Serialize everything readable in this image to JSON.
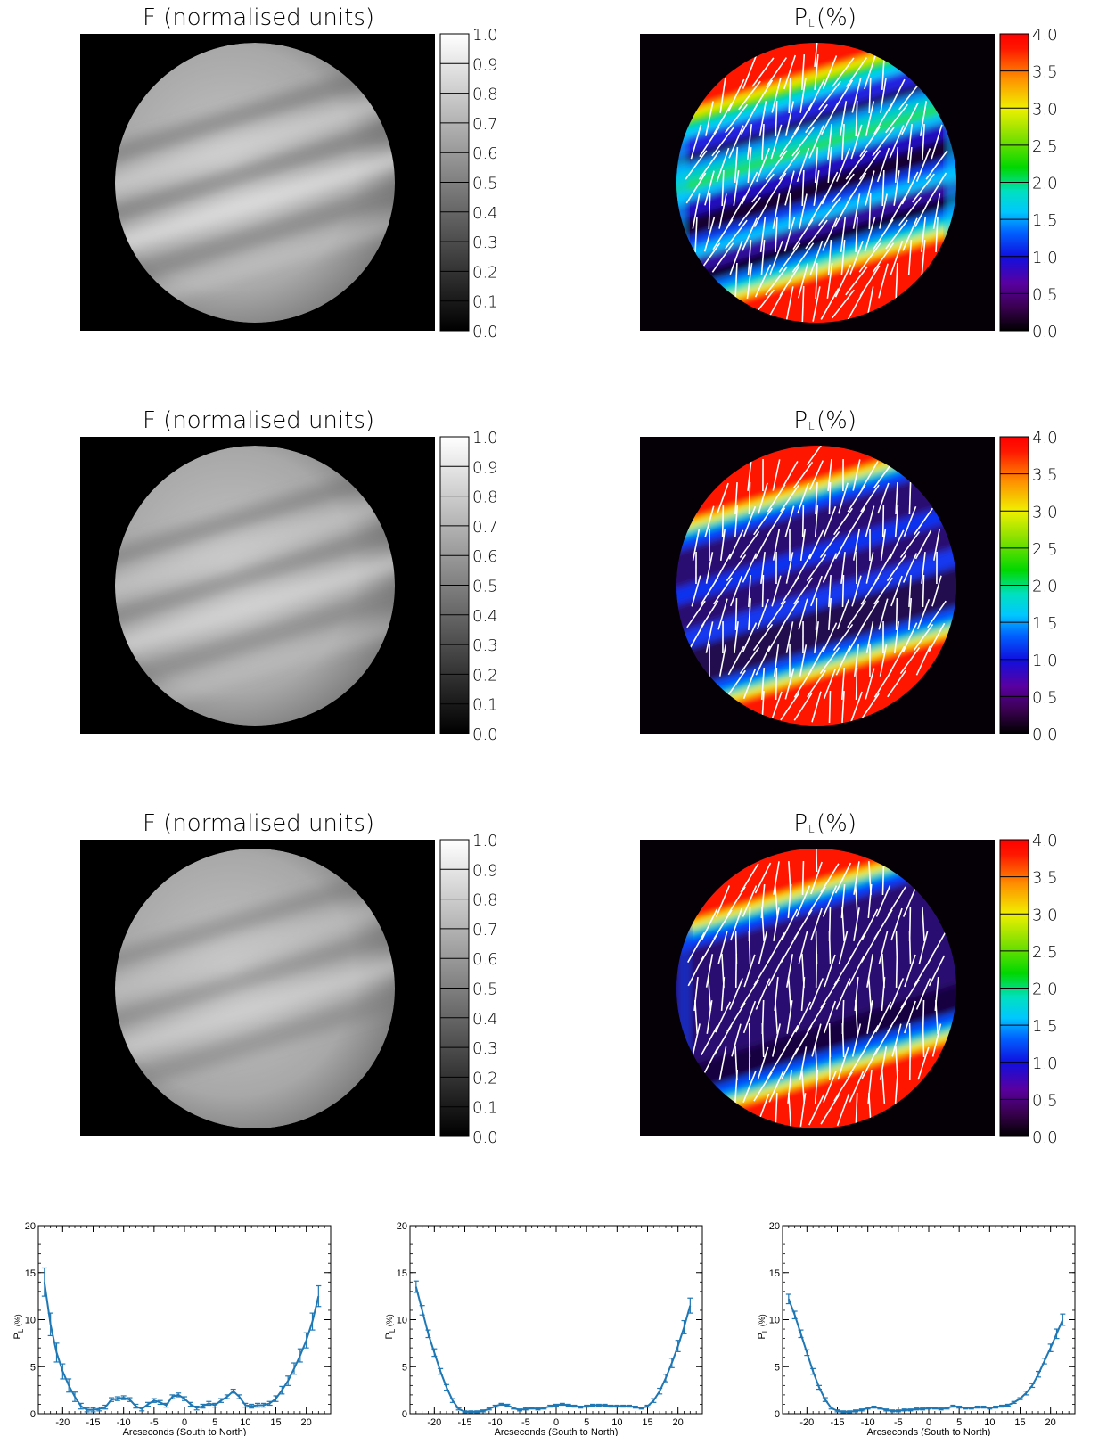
{
  "panels": [
    {
      "flux": {
        "title": "F (normalised units)",
        "colorbar_ticks": [
          "1.0",
          "0.9",
          "0.8",
          "0.7",
          "0.6",
          "0.5",
          "0.4",
          "0.3",
          "0.2",
          "0.1",
          "0.0"
        ]
      },
      "pol": {
        "title_main": "P",
        "title_sub": "L",
        "title_rest": " (%)",
        "colorbar_ticks": [
          "4.0",
          "3.5",
          "3.0",
          "2.5",
          "2.0",
          "1.5",
          "1.0",
          "0.5",
          "0.0"
        ]
      }
    },
    {
      "flux": {
        "title": "F (normalised units)",
        "colorbar_ticks": [
          "1.0",
          "0.9",
          "0.8",
          "0.7",
          "0.6",
          "0.5",
          "0.4",
          "0.3",
          "0.2",
          "0.1",
          "0.0"
        ]
      },
      "pol": {
        "title_main": "P",
        "title_sub": "L",
        "title_rest": " (%)",
        "colorbar_ticks": [
          "4.0",
          "3.5",
          "3.0",
          "2.5",
          "2.0",
          "1.5",
          "1.0",
          "0.5",
          "0.0"
        ]
      }
    },
    {
      "flux": {
        "title": "F (normalised units)",
        "colorbar_ticks": [
          "1.0",
          "0.9",
          "0.8",
          "0.7",
          "0.6",
          "0.5",
          "0.4",
          "0.3",
          "0.2",
          "0.1",
          "0.0"
        ]
      },
      "pol": {
        "title_main": "P",
        "title_sub": "L",
        "title_rest": " (%)",
        "colorbar_ticks": [
          "4.0",
          "3.5",
          "3.0",
          "2.5",
          "2.0",
          "1.5",
          "1.0",
          "0.5",
          "0.0"
        ]
      }
    }
  ],
  "colors": {
    "line": "#1f77b4",
    "background": "#000000",
    "vectors": "#ffffff"
  },
  "chart_data": [
    {
      "type": "line",
      "title": "",
      "xlabel": "Arcseconds (South to North)",
      "ylabel_main": "P",
      "ylabel_sub": "L",
      "ylabel_rest": " (%)",
      "xlim": [
        -24,
        24
      ],
      "ylim": [
        0,
        20
      ],
      "xticks": [
        -20,
        -15,
        -10,
        -5,
        0,
        5,
        10,
        15,
        20
      ],
      "yticks": [
        0,
        5,
        10,
        15,
        20
      ],
      "x": [
        -23,
        -22,
        -21,
        -20,
        -19,
        -18,
        -17,
        -16,
        -15,
        -14,
        -13,
        -12,
        -11,
        -10,
        -9,
        -8,
        -7,
        -6,
        -5,
        -4,
        -3,
        -2,
        -1,
        0,
        1,
        2,
        3,
        4,
        5,
        6,
        7,
        8,
        9,
        10,
        11,
        12,
        13,
        14,
        15,
        16,
        17,
        18,
        19,
        20,
        21,
        22
      ],
      "y": [
        14,
        9.5,
        6.5,
        4.5,
        3,
        1.8,
        0.8,
        0.4,
        0.4,
        0.5,
        0.7,
        1.5,
        1.6,
        1.7,
        1.5,
        0.8,
        0.5,
        1.0,
        1.4,
        1.2,
        0.9,
        1.8,
        2.0,
        1.6,
        1.0,
        0.6,
        0.8,
        1.1,
        0.9,
        1.4,
        1.8,
        2.4,
        1.8,
        0.9,
        0.8,
        0.9,
        0.9,
        1.1,
        1.6,
        2.5,
        3.5,
        4.8,
        6.2,
        7.8,
        9.8,
        12.5
      ],
      "err": [
        1.5,
        1.2,
        1.0,
        0.8,
        0.7,
        0.5,
        0.3,
        0.2,
        0.2,
        0.2,
        0.2,
        0.2,
        0.2,
        0.2,
        0.2,
        0.2,
        0.2,
        0.2,
        0.2,
        0.2,
        0.2,
        0.2,
        0.2,
        0.2,
        0.2,
        0.2,
        0.2,
        0.2,
        0.2,
        0.2,
        0.2,
        0.2,
        0.2,
        0.2,
        0.2,
        0.2,
        0.2,
        0.2,
        0.3,
        0.4,
        0.5,
        0.6,
        0.7,
        0.8,
        0.9,
        1.1
      ]
    },
    {
      "type": "line",
      "title": "",
      "xlabel": "Arcseconds (South to North)",
      "ylabel_main": "P",
      "ylabel_sub": "L",
      "ylabel_rest": " (%)",
      "xlim": [
        -24,
        24
      ],
      "ylim": [
        0,
        20
      ],
      "xticks": [
        -20,
        -15,
        -10,
        -5,
        0,
        5,
        10,
        15,
        20
      ],
      "yticks": [
        0,
        5,
        10,
        15,
        20
      ],
      "x": [
        -23,
        -22,
        -21,
        -20,
        -19,
        -18,
        -17,
        -16,
        -15,
        -14,
        -13,
        -12,
        -11,
        -10,
        -9,
        -8,
        -7,
        -6,
        -5,
        -4,
        -3,
        -2,
        -1,
        0,
        1,
        2,
        3,
        4,
        5,
        6,
        7,
        8,
        9,
        10,
        11,
        12,
        13,
        14,
        15,
        16,
        17,
        18,
        19,
        20,
        21,
        22
      ],
      "y": [
        13.5,
        11,
        8.5,
        6.5,
        4.5,
        2.8,
        1.4,
        0.5,
        0.2,
        0.2,
        0.2,
        0.3,
        0.5,
        0.8,
        1.0,
        0.9,
        0.6,
        0.4,
        0.5,
        0.6,
        0.5,
        0.6,
        0.8,
        0.9,
        1.0,
        0.9,
        0.8,
        0.7,
        0.8,
        0.9,
        0.9,
        0.9,
        0.8,
        0.8,
        0.8,
        0.8,
        0.7,
        0.6,
        0.8,
        1.4,
        2.4,
        3.8,
        5.4,
        7.2,
        9.2,
        11.5
      ],
      "err": [
        0.6,
        0.5,
        0.4,
        0.4,
        0.3,
        0.3,
        0.2,
        0.1,
        0.1,
        0.1,
        0.1,
        0.1,
        0.1,
        0.1,
        0.1,
        0.1,
        0.1,
        0.1,
        0.1,
        0.1,
        0.1,
        0.1,
        0.1,
        0.1,
        0.1,
        0.1,
        0.1,
        0.1,
        0.1,
        0.1,
        0.1,
        0.1,
        0.1,
        0.1,
        0.1,
        0.1,
        0.1,
        0.1,
        0.1,
        0.2,
        0.3,
        0.4,
        0.5,
        0.6,
        0.7,
        0.8
      ]
    },
    {
      "type": "line",
      "title": "",
      "xlabel": "Arcseconds (South to North)",
      "ylabel_main": "P",
      "ylabel_sub": "L",
      "ylabel_rest": " (%)",
      "xlim": [
        -24,
        24
      ],
      "ylim": [
        0,
        20
      ],
      "xticks": [
        -20,
        -15,
        -10,
        -5,
        0,
        5,
        10,
        15,
        20
      ],
      "yticks": [
        0,
        5,
        10,
        15,
        20
      ],
      "x": [
        -23,
        -22,
        -21,
        -20,
        -19,
        -18,
        -17,
        -16,
        -15,
        -14,
        -13,
        -12,
        -11,
        -10,
        -9,
        -8,
        -7,
        -6,
        -5,
        -4,
        -3,
        -2,
        -1,
        0,
        1,
        2,
        3,
        4,
        5,
        6,
        7,
        8,
        9,
        10,
        11,
        12,
        13,
        14,
        15,
        16,
        17,
        18,
        19,
        20,
        21,
        22
      ],
      "y": [
        12.2,
        10.5,
        8.5,
        6.5,
        4.5,
        2.8,
        1.5,
        0.6,
        0.3,
        0.2,
        0.2,
        0.3,
        0.4,
        0.6,
        0.7,
        0.6,
        0.4,
        0.3,
        0.3,
        0.4,
        0.4,
        0.5,
        0.5,
        0.6,
        0.6,
        0.5,
        0.6,
        0.8,
        0.7,
        0.6,
        0.6,
        0.7,
        0.7,
        0.6,
        0.7,
        0.8,
        0.9,
        1.2,
        1.6,
        2.2,
        3.0,
        4.2,
        5.6,
        7.0,
        8.5,
        10.0
      ],
      "err": [
        0.5,
        0.4,
        0.4,
        0.3,
        0.3,
        0.2,
        0.2,
        0.1,
        0.1,
        0.1,
        0.1,
        0.1,
        0.1,
        0.1,
        0.1,
        0.1,
        0.1,
        0.1,
        0.1,
        0.1,
        0.1,
        0.1,
        0.1,
        0.1,
        0.1,
        0.1,
        0.1,
        0.1,
        0.1,
        0.1,
        0.1,
        0.1,
        0.1,
        0.1,
        0.1,
        0.1,
        0.1,
        0.1,
        0.1,
        0.2,
        0.2,
        0.3,
        0.3,
        0.4,
        0.5,
        0.6
      ]
    }
  ]
}
